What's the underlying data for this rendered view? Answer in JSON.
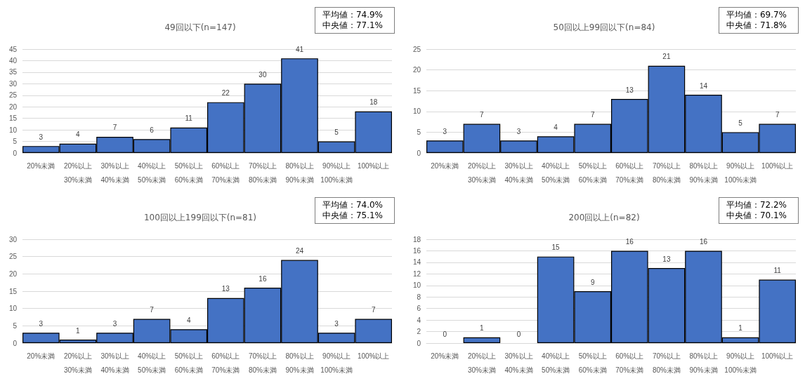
{
  "chart_data": [
    {
      "type": "bar",
      "title": "49回以下(n=147)",
      "categories": [
        "20%未満",
        "20%以上\n30%未満",
        "30%以上\n40%未満",
        "40%以上\n50%未満",
        "50%以上\n60%未満",
        "60%以上\n70%未満",
        "70%以上\n80%未満",
        "80%以上\n90%未満",
        "90%以上\n100%未満",
        "100%以上"
      ],
      "values": [
        3,
        4,
        7,
        6,
        11,
        22,
        30,
        41,
        5,
        18
      ],
      "color": "#4472c4",
      "ylim": [
        0,
        45
      ],
      "yticks": [
        0,
        5,
        10,
        15,
        20,
        25,
        30,
        35,
        40,
        45
      ],
      "grid": "y",
      "data_labels": true,
      "annotations": [
        "平均値：74.9%",
        "中央値：77.1%"
      ]
    },
    {
      "type": "bar",
      "title": "50回以上99回以下(n=84)",
      "categories": [
        "20%未満",
        "20%以上\n30%未満",
        "30%以上\n40%未満",
        "40%以上\n50%未満",
        "50%以上\n60%未満",
        "60%以上\n70%未満",
        "70%以上\n80%未満",
        "80%以上\n90%未満",
        "90%以上\n100%未満",
        "100%以上"
      ],
      "values": [
        3,
        7,
        3,
        4,
        7,
        13,
        21,
        14,
        5,
        7
      ],
      "color": "#4472c4",
      "ylim": [
        0,
        25
      ],
      "yticks": [
        0,
        5,
        10,
        15,
        20,
        25
      ],
      "grid": "y",
      "data_labels": true,
      "annotations": [
        "平均値：69.7%",
        "中央値：71.8%"
      ]
    },
    {
      "type": "bar",
      "title": "100回以上199回以下(n=81)",
      "categories": [
        "20%未満",
        "20%以上\n30%未満",
        "30%以上\n40%未満",
        "40%以上\n50%未満",
        "50%以上\n60%未満",
        "60%以上\n70%未満",
        "70%以上\n80%未満",
        "80%以上\n90%未満",
        "90%以上\n100%未満",
        "100%以上"
      ],
      "values": [
        3,
        1,
        3,
        7,
        4,
        13,
        16,
        24,
        3,
        7
      ],
      "color": "#4472c4",
      "ylim": [
        0,
        30
      ],
      "yticks": [
        0,
        5,
        10,
        15,
        20,
        25,
        30
      ],
      "grid": "y",
      "data_labels": true,
      "annotations": [
        "平均値：74.0%",
        "中央値：75.1%"
      ]
    },
    {
      "type": "bar",
      "title": "200回以上(n=82)",
      "categories": [
        "20%未満",
        "20%以上\n30%未満",
        "30%以上\n40%未満",
        "40%以上\n50%未満",
        "50%以上\n60%未満",
        "60%以上\n70%未満",
        "70%以上\n80%未満",
        "80%以上\n90%未満",
        "90%以上\n100%未満",
        "100%以上"
      ],
      "values": [
        0,
        1,
        0,
        15,
        9,
        16,
        13,
        16,
        1,
        11
      ],
      "color": "#4472c4",
      "ylim": [
        0,
        18
      ],
      "yticks": [
        0,
        2,
        4,
        6,
        8,
        10,
        12,
        14,
        16,
        18
      ],
      "grid": "y",
      "data_labels": true,
      "annotations": [
        "平均値：72.2%",
        "中央値：70.1%"
      ]
    }
  ]
}
